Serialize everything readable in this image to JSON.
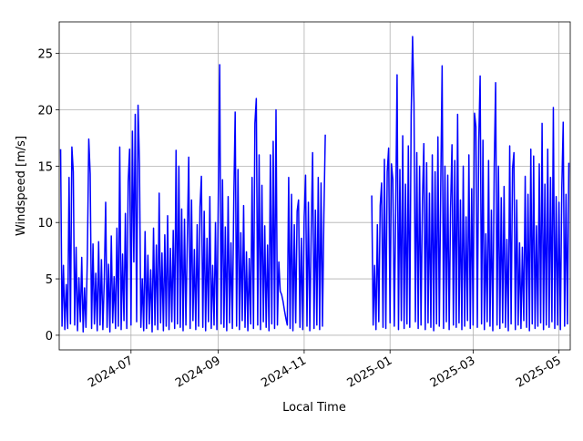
{
  "chart_data": {
    "type": "line",
    "xlabel": "Local Time",
    "ylabel": "Windspeed [m/s]",
    "color": "#0000ff",
    "grid": true,
    "xlim": [
      19854,
      20217
    ],
    "ylim": [
      -1.3,
      27.8
    ],
    "xticks": [
      {
        "value": 19905,
        "label": "2024-07"
      },
      {
        "value": 19967,
        "label": "2024-09"
      },
      {
        "value": 20028,
        "label": "2024-11"
      },
      {
        "value": 20089,
        "label": "2025-01"
      },
      {
        "value": 20148,
        "label": "2025-03"
      },
      {
        "value": 20209,
        "label": "2025-05"
      }
    ],
    "yticks": [
      0,
      5,
      10,
      15,
      20,
      25
    ],
    "x": [
      19855,
      19856,
      19857,
      19858,
      19859,
      19860,
      19861,
      19862,
      19863,
      19864,
      19865,
      19866,
      19867,
      19868,
      19869,
      19870,
      19871,
      19872,
      19873,
      19874,
      19875,
      19876,
      19877,
      19878,
      19879,
      19880,
      19881,
      19882,
      19883,
      19884,
      19885,
      19886,
      19887,
      19888,
      19889,
      19890,
      19891,
      19892,
      19893,
      19894,
      19895,
      19896,
      19897,
      19898,
      19899,
      19900,
      19901,
      19902,
      19903,
      19904,
      19905,
      19906,
      19907,
      19908,
      19909,
      19910,
      19911,
      19912,
      19913,
      19914,
      19915,
      19916,
      19917,
      19918,
      19919,
      19920,
      19921,
      19922,
      19923,
      19924,
      19925,
      19926,
      19927,
      19928,
      19929,
      19930,
      19931,
      19932,
      19933,
      19934,
      19935,
      19936,
      19937,
      19938,
      19939,
      19940,
      19941,
      19942,
      19943,
      19944,
      19945,
      19946,
      19947,
      19948,
      19949,
      19950,
      19951,
      19952,
      19953,
      19954,
      19955,
      19956,
      19957,
      19958,
      19959,
      19960,
      19961,
      19962,
      19963,
      19964,
      19965,
      19966,
      19967,
      19968,
      19969,
      19970,
      19971,
      19972,
      19973,
      19974,
      19975,
      19976,
      19977,
      19978,
      19979,
      19980,
      19981,
      19982,
      19983,
      19984,
      19985,
      19986,
      19987,
      19988,
      19989,
      19990,
      19991,
      19992,
      19993,
      19994,
      19995,
      19996,
      19997,
      19998,
      19999,
      20000,
      20001,
      20002,
      20003,
      20004,
      20005,
      20006,
      20007,
      20008,
      20009,
      20010,
      20011,
      20012,
      20013,
      20014,
      20015,
      20016,
      20017,
      20018,
      20019,
      20020,
      20021,
      20022,
      20023,
      20024,
      20025,
      20026,
      20027,
      20028,
      20029,
      20030,
      20031,
      20032,
      20033,
      20034,
      20035,
      20036,
      20037,
      20038,
      20039,
      20040,
      20041,
      20042,
      20043,
      20060,
      20076,
      20077,
      20078,
      20079,
      20080,
      20081,
      20082,
      20083,
      20084,
      20085,
      20086,
      20087,
      20088,
      20089,
      20090,
      20091,
      20092,
      20093,
      20094,
      20095,
      20096,
      20097,
      20098,
      20099,
      20100,
      20101,
      20102,
      20103,
      20104,
      20105,
      20106,
      20107,
      20108,
      20109,
      20110,
      20111,
      20112,
      20113,
      20114,
      20115,
      20116,
      20117,
      20118,
      20119,
      20120,
      20121,
      20122,
      20123,
      20124,
      20125,
      20126,
      20127,
      20128,
      20129,
      20130,
      20131,
      20132,
      20133,
      20134,
      20135,
      20136,
      20137,
      20138,
      20139,
      20140,
      20141,
      20142,
      20143,
      20144,
      20145,
      20146,
      20147,
      20148,
      20149,
      20150,
      20151,
      20152,
      20153,
      20154,
      20155,
      20156,
      20157,
      20158,
      20159,
      20160,
      20161,
      20162,
      20163,
      20164,
      20165,
      20166,
      20167,
      20168,
      20169,
      20170,
      20171,
      20172,
      20173,
      20174,
      20175,
      20176,
      20177,
      20178,
      20179,
      20180,
      20181,
      20182,
      20183,
      20184,
      20185,
      20186,
      20187,
      20188,
      20189,
      20190,
      20191,
      20192,
      20193,
      20194,
      20195,
      20196,
      20197,
      20198,
      20199,
      20200,
      20201,
      20202,
      20203,
      20204,
      20205,
      20206,
      20207,
      20208,
      20209,
      20210,
      20211,
      20212,
      20213,
      20214,
      20215,
      20216
    ],
    "values": [
      16.5,
      0.8,
      6.2,
      0.5,
      4.5,
      0.6,
      14.0,
      1.0,
      16.7,
      14.5,
      0.9,
      7.8,
      0.4,
      5.1,
      1.2,
      6.9,
      0.3,
      4.2,
      0.7,
      7.0,
      17.4,
      14.3,
      0.6,
      8.1,
      1.0,
      5.5,
      0.4,
      8.3,
      0.9,
      6.7,
      0.5,
      4.8,
      11.8,
      0.7,
      6.3,
      0.3,
      8.8,
      1.1,
      5.2,
      0.6,
      9.5,
      0.8,
      16.7,
      0.5,
      7.2,
      1.3,
      10.8,
      0.6,
      13.6,
      16.5,
      0.9,
      18.1,
      6.5,
      19.6,
      1.2,
      20.4,
      15.2,
      0.7,
      5.0,
      0.4,
      9.2,
      0.6,
      7.1,
      1.0,
      5.8,
      0.3,
      9.5,
      0.9,
      8.0,
      0.5,
      12.6,
      1.1,
      7.3,
      0.4,
      8.9,
      0.8,
      10.6,
      0.5,
      7.7,
      1.2,
      9.3,
      0.6,
      16.4,
      1.0,
      15.0,
      0.7,
      11.2,
      0.4,
      10.3,
      0.9,
      8.5,
      15.8,
      0.6,
      12.0,
      1.3,
      7.6,
      0.5,
      9.8,
      0.8,
      11.4,
      14.1,
      0.7,
      11.0,
      0.4,
      8.6,
      1.2,
      12.3,
      0.6,
      6.2,
      0.9,
      10.0,
      0.5,
      12.2,
      24.0,
      1.0,
      13.8,
      0.7,
      9.6,
      0.4,
      12.3,
      1.1,
      8.2,
      0.6,
      12.0,
      19.8,
      0.8,
      14.7,
      0.5,
      9.1,
      1.3,
      11.5,
      0.7,
      7.4,
      0.4,
      6.8,
      1.0,
      14.0,
      0.6,
      18.8,
      21.0,
      0.9,
      16.0,
      0.5,
      13.3,
      1.2,
      9.7,
      0.7,
      8.0,
      0.4,
      16.0,
      1.0,
      17.2,
      0.6,
      20.0,
      0.9,
      6.5,
      3.9,
      3.6,
      3.0,
      2.2,
      1.5,
      0.9,
      14.0,
      0.6,
      12.5,
      0.4,
      9.8,
      1.1,
      11.0,
      12.0,
      0.7,
      8.6,
      0.5,
      10.5,
      14.2,
      0.8,
      11.8,
      0.4,
      9.2,
      16.2,
      0.6,
      11.1,
      0.9,
      14.0,
      0.5,
      13.5,
      0.8,
      10.6,
      17.8,
      null,
      12.4,
      0.9,
      6.2,
      0.5,
      9.8,
      1.2,
      11.5,
      13.5,
      0.7,
      15.6,
      0.6,
      14.5,
      16.6,
      1.1,
      15.2,
      13.8,
      0.8,
      10.9,
      23.1,
      0.5,
      14.7,
      1.3,
      17.7,
      0.6,
      13.4,
      1.0,
      16.8,
      0.7,
      19.5,
      26.5,
      20.6,
      1.2,
      16.2,
      0.6,
      15.0,
      0.9,
      12.0,
      17.0,
      0.5,
      15.3,
      1.1,
      12.6,
      0.7,
      16.0,
      0.4,
      14.5,
      1.0,
      17.6,
      0.8,
      13.0,
      23.9,
      0.6,
      15.0,
      1.2,
      14.2,
      0.5,
      11.3,
      16.9,
      0.9,
      15.5,
      0.7,
      19.6,
      1.1,
      12.0,
      0.5,
      15.0,
      0.8,
      10.5,
      1.3,
      16.0,
      0.6,
      13.0,
      0.9,
      19.7,
      18.5,
      0.7,
      17.2,
      23.0,
      1.0,
      17.3,
      0.5,
      9.0,
      1.2,
      15.5,
      0.8,
      11.1,
      0.4,
      14.9,
      22.4,
      0.9,
      15.0,
      0.6,
      12.2,
      1.1,
      13.2,
      0.7,
      8.5,
      0.4,
      16.8,
      1.0,
      14.8,
      16.2,
      0.5,
      12.0,
      0.9,
      8.2,
      0.6,
      7.8,
      1.3,
      14.1,
      0.7,
      12.5,
      0.4,
      16.5,
      1.0,
      15.9,
      0.6,
      9.7,
      0.8,
      15.2,
      1.1,
      18.8,
      0.5,
      13.4,
      0.9,
      16.5,
      0.7,
      14.0,
      1.2,
      20.2,
      0.6,
      12.3,
      0.9,
      11.8,
      0.5,
      13.0,
      18.9,
      0.8,
      12.5,
      1.0,
      15.3
    ]
  }
}
